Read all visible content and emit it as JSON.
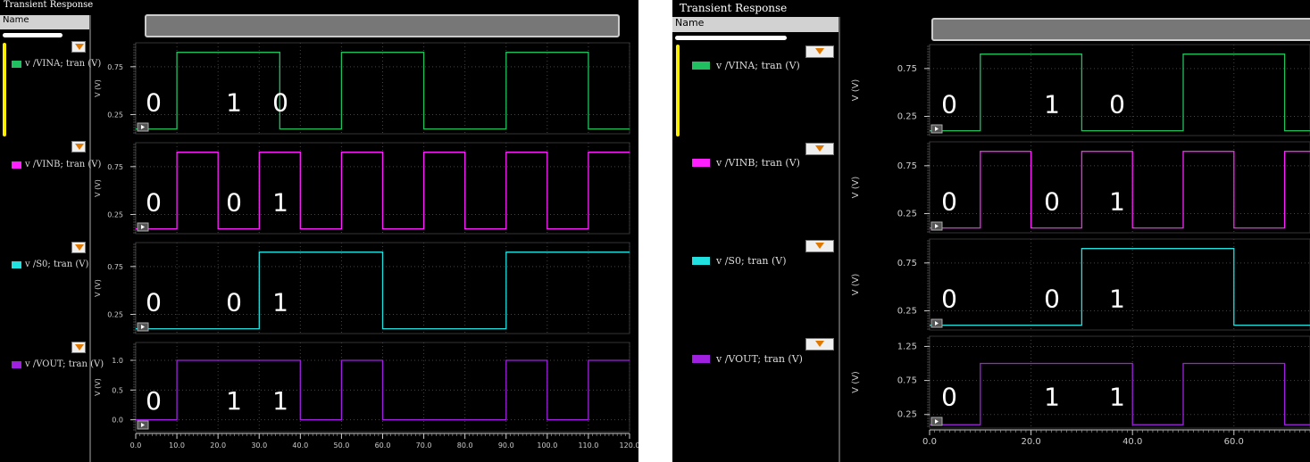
{
  "window_title": "Transient Response",
  "name_header": "Name",
  "legend_labels": {
    "left": [
      "v /VINA; tran (V)",
      "v /VINB; tran (V)",
      "v /S0; tran (V)",
      "v /VOUT; tran (V)"
    ],
    "right": [
      "v /VINA; tran (V)",
      "v /VINB; tran (V)",
      "v /S0; tran (V)",
      "v /VOUT; tran (V)"
    ]
  },
  "ylabel": "V (V)",
  "colors": {
    "VINA": "#20c060",
    "VINB": "#ff20ff",
    "S0": "#20e0e0",
    "VOUT": "#a020e0",
    "background": "#000000",
    "grid": "#444444"
  },
  "annotations": {
    "VINA": [
      "0",
      "1",
      "0"
    ],
    "VINB": [
      "0",
      "0",
      "1"
    ],
    "S0": [
      "0",
      "0",
      "1"
    ],
    "VOUT": [
      "0",
      "1",
      "1"
    ]
  },
  "chart_data": [
    {
      "type": "line",
      "panel": "left",
      "xlim": [
        0,
        120
      ],
      "x_ticks": [
        "0.0",
        "10.0",
        "20.0",
        "30.0",
        "40.0",
        "50.0",
        "60.0",
        "70.0",
        "80.0",
        "90.0",
        "100.0",
        "110.0",
        "120.0"
      ],
      "series": [
        {
          "name": "v /VINA; tran (V)",
          "ylim": [
            0.05,
            1.0
          ],
          "y_ticks": [
            "0.75",
            "0.25"
          ],
          "x": [
            0,
            10,
            10,
            35,
            35,
            50,
            50,
            70,
            70,
            90,
            90,
            110,
            110,
            120
          ],
          "y": [
            0.1,
            0.1,
            0.9,
            0.9,
            0.1,
            0.1,
            0.9,
            0.9,
            0.1,
            0.1,
            0.9,
            0.9,
            0.1,
            0.1
          ]
        },
        {
          "name": "v /VINB; tran (V)",
          "ylim": [
            0.05,
            1.0
          ],
          "y_ticks": [
            "0.75",
            "0.25"
          ],
          "x": [
            0,
            10,
            10,
            20,
            20,
            30,
            30,
            40,
            40,
            50,
            50,
            60,
            60,
            70,
            70,
            80,
            80,
            90,
            90,
            100,
            100,
            110,
            110,
            120
          ],
          "y": [
            0.1,
            0.1,
            0.9,
            0.9,
            0.1,
            0.1,
            0.9,
            0.9,
            0.1,
            0.1,
            0.9,
            0.9,
            0.1,
            0.1,
            0.9,
            0.9,
            0.1,
            0.1,
            0.9,
            0.9,
            0.1,
            0.1,
            0.9,
            0.9
          ]
        },
        {
          "name": "v /S0; tran (V)",
          "ylim": [
            0.05,
            1.0
          ],
          "y_ticks": [
            "0.75",
            "0.25"
          ],
          "x": [
            0,
            30,
            30,
            60,
            60,
            90,
            90,
            120
          ],
          "y": [
            0.1,
            0.1,
            0.9,
            0.9,
            0.1,
            0.1,
            0.9,
            0.9
          ]
        },
        {
          "name": "v /VOUT; tran (V)",
          "ylim": [
            -0.2,
            1.3
          ],
          "y_ticks": [
            "1.0",
            "0.5",
            "0.0"
          ],
          "x": [
            0,
            10,
            10,
            40,
            40,
            50,
            50,
            60,
            60,
            90,
            90,
            100,
            100,
            110,
            110,
            120
          ],
          "y": [
            0.0,
            0.0,
            1.0,
            1.0,
            0.0,
            0.0,
            1.0,
            1.0,
            0.0,
            0.0,
            1.0,
            1.0,
            0.0,
            0.0,
            1.0,
            1.0
          ]
        }
      ]
    },
    {
      "type": "line",
      "panel": "right",
      "xlim": [
        0,
        75
      ],
      "x_ticks": [
        "0.0",
        "20.0",
        "40.0",
        "60.0"
      ],
      "series": [
        {
          "name": "v /VINA; tran (V)",
          "ylim": [
            0.05,
            1.0
          ],
          "y_ticks": [
            "0.75",
            "0.25"
          ],
          "x": [
            0,
            10,
            10,
            30,
            30,
            50,
            50,
            70,
            70,
            75
          ],
          "y": [
            0.1,
            0.1,
            0.9,
            0.9,
            0.1,
            0.1,
            0.9,
            0.9,
            0.1,
            0.1
          ]
        },
        {
          "name": "v /VINB; tran (V)",
          "ylim": [
            0.05,
            1.0
          ],
          "y_ticks": [
            "0.75",
            "0.25"
          ],
          "x": [
            0,
            10,
            10,
            20,
            20,
            30,
            30,
            40,
            40,
            50,
            50,
            60,
            60,
            70,
            70,
            75
          ],
          "y": [
            0.1,
            0.1,
            0.9,
            0.9,
            0.1,
            0.1,
            0.9,
            0.9,
            0.1,
            0.1,
            0.9,
            0.9,
            0.1,
            0.1,
            0.9,
            0.9
          ]
        },
        {
          "name": "v /S0; tran (V)",
          "ylim": [
            0.05,
            1.0
          ],
          "y_ticks": [
            "0.75",
            "0.25"
          ],
          "x": [
            0,
            30,
            30,
            60,
            60,
            75
          ],
          "y": [
            0.1,
            0.1,
            0.9,
            0.9,
            0.1,
            0.1
          ]
        },
        {
          "name": "v /VOUT; tran (V)",
          "ylim": [
            0.05,
            1.4
          ],
          "y_ticks": [
            "1.25",
            "0.75",
            "0.25"
          ],
          "x": [
            0,
            10,
            10,
            40,
            40,
            50,
            50,
            70,
            70,
            75
          ],
          "y": [
            0.1,
            0.1,
            1.0,
            1.0,
            0.1,
            0.1,
            1.0,
            1.0,
            0.1,
            0.1
          ]
        }
      ]
    }
  ]
}
